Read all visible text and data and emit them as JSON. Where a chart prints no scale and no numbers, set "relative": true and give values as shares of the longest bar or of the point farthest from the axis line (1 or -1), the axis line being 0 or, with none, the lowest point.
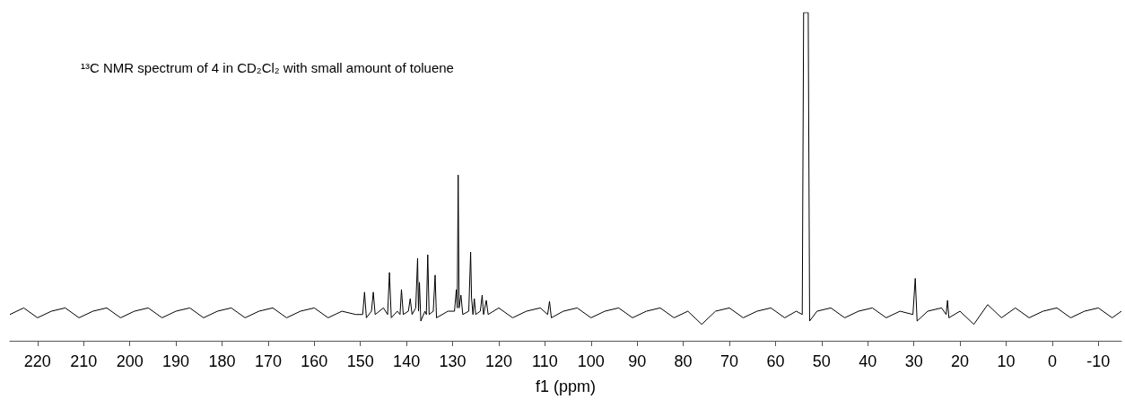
{
  "chart_data": {
    "type": "line",
    "title": "¹³C NMR spectrum of 4 in CD₂Cl₂ with small amount of toluene",
    "xlabel": "f1 (ppm)",
    "relative": true,
    "xlim": [
      226,
      -15
    ],
    "xticks": [
      220,
      210,
      200,
      190,
      180,
      170,
      160,
      150,
      140,
      130,
      120,
      110,
      100,
      90,
      80,
      70,
      60,
      50,
      40,
      30,
      20,
      10,
      0,
      -10
    ],
    "series": [
      {
        "color": "#000000",
        "x": [
          226,
          223,
          220,
          217,
          214,
          211,
          208,
          205,
          202,
          199,
          196,
          193,
          190,
          187,
          184,
          181,
          178,
          175,
          172,
          169,
          166,
          163,
          160,
          157,
          154,
          151,
          149.5,
          149.1,
          148.7,
          147.6,
          147.2,
          146.8,
          145,
          144.1,
          143.7,
          143.3,
          142,
          141.4,
          141.1,
          140.7,
          139.6,
          139.2,
          138.8,
          138,
          137.6,
          137.4,
          137.2,
          136.9,
          136,
          135.7,
          135.4,
          135.1,
          134.2,
          133.8,
          133.5,
          131,
          129.6,
          129.2,
          129.0,
          128.8,
          128.6,
          128.2,
          127.8,
          126.5,
          126.1,
          125.9,
          125.6,
          125.3,
          125.0,
          124,
          123.6,
          123.3,
          122.7,
          122.3,
          120,
          117,
          114,
          111,
          109.4,
          109.0,
          108.6,
          106,
          103,
          100,
          97,
          94,
          91,
          88,
          85,
          82,
          79,
          76,
          73,
          70,
          67,
          64,
          61,
          58,
          55.5,
          54.2,
          53.9,
          53.4,
          52.9,
          52.6,
          51,
          48,
          45,
          42,
          39,
          36,
          33,
          30.2,
          29.7,
          29.3,
          27,
          24,
          23.0,
          22.7,
          22.4,
          20,
          17,
          14,
          11,
          8,
          5,
          2,
          -1,
          -4,
          -7,
          -10,
          -13,
          -15
        ],
        "values": [
          0.08,
          0.1,
          0.07,
          0.09,
          0.1,
          0.07,
          0.09,
          0.1,
          0.07,
          0.09,
          0.1,
          0.07,
          0.09,
          0.1,
          0.07,
          0.09,
          0.1,
          0.07,
          0.09,
          0.1,
          0.07,
          0.09,
          0.1,
          0.07,
          0.09,
          0.08,
          0.08,
          0.148,
          0.07,
          0.09,
          0.148,
          0.08,
          0.1,
          0.08,
          0.208,
          0.07,
          0.09,
          0.08,
          0.156,
          0.08,
          0.09,
          0.128,
          0.08,
          0.1,
          0.251,
          0.09,
          0.178,
          0.06,
          0.09,
          0.08,
          0.262,
          0.08,
          0.09,
          0.2,
          0.07,
          0.09,
          0.09,
          0.156,
          0.1,
          0.505,
          0.1,
          0.139,
          0.08,
          0.09,
          0.27,
          0.131,
          0.08,
          0.128,
          0.08,
          0.09,
          0.139,
          0.08,
          0.123,
          0.08,
          0.1,
          0.07,
          0.09,
          0.1,
          0.08,
          0.12,
          0.07,
          0.09,
          0.1,
          0.07,
          0.09,
          0.1,
          0.07,
          0.09,
          0.1,
          0.07,
          0.09,
          0.05,
          0.09,
          0.1,
          0.07,
          0.09,
          0.1,
          0.07,
          0.09,
          0.08,
          1,
          1,
          1,
          0.06,
          0.09,
          0.1,
          0.07,
          0.09,
          0.1,
          0.07,
          0.09,
          0.08,
          0.19,
          0.06,
          0.09,
          0.1,
          0.08,
          0.123,
          0.07,
          0.09,
          0.05,
          0.11,
          0.07,
          0.1,
          0.07,
          0.09,
          0.1,
          0.07,
          0.09,
          0.1,
          0.07,
          0.09
        ]
      }
    ]
  }
}
